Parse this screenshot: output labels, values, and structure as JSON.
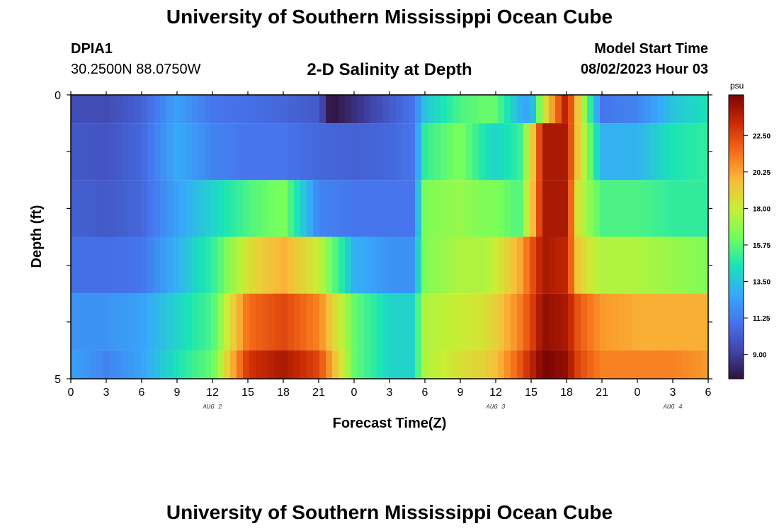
{
  "header": {
    "title": "University of Southern Mississippi Ocean Cube",
    "station": "DPIA1",
    "coords": "30.2500N  88.0750W",
    "chart_title": "2-D Salinity at Depth",
    "model_label": "Model Start Time",
    "model_time": "08/02/2023 Hour 03"
  },
  "footer": {
    "title": "University of Southern Mississippi Ocean Cube"
  },
  "chart_data": {
    "type": "heatmap",
    "title": "2-D Salinity at Depth",
    "xlabel": "Forecast Time(Z)",
    "ylabel": "Depth (ft)",
    "colorbar_unit": "psu",
    "colorbar_ticks": [
      "22.50",
      "20.25",
      "18.00",
      "15.75",
      "13.50",
      "11.25",
      "9.00"
    ],
    "colorbar_range": [
      7.5,
      25.0
    ],
    "y_ticks": [
      "0",
      "5"
    ],
    "x_tick_labels": [
      "0",
      "3",
      "6",
      "9",
      "12",
      "15",
      "18",
      "21",
      "0",
      "3",
      "6",
      "9",
      "12",
      "15",
      "18",
      "21",
      "0",
      "3",
      "6"
    ],
    "date_labels": [
      {
        "label": "AUG 2",
        "tick_index": 4
      },
      {
        "label": "AUG 3",
        "tick_index": 12
      },
      {
        "label": "AUG 4",
        "tick_index": 17
      }
    ],
    "layers": [
      {
        "depth_range": [
          0,
          0.5
        ],
        "times": [
          0,
          3,
          6,
          9,
          12,
          15,
          18,
          21,
          22,
          24,
          27,
          29,
          30,
          33,
          35,
          36,
          38,
          39,
          40,
          42,
          43,
          45,
          48,
          51,
          54
        ],
        "values": [
          9.6,
          9.5,
          10.3,
          12.5,
          11.0,
          10.8,
          10.5,
          10.0,
          7.5,
          8.5,
          10.0,
          11.0,
          13.5,
          15.5,
          16.0,
          16.0,
          13.0,
          12.5,
          18.0,
          24.0,
          19.0,
          11.0,
          11.5,
          13.5,
          14.5
        ]
      },
      {
        "depth_range": [
          0.5,
          1.5
        ],
        "times": [
          0,
          3,
          6,
          9,
          12,
          15,
          18,
          21,
          24,
          27,
          29,
          30,
          33,
          35,
          36,
          38,
          39,
          40,
          42,
          43,
          45,
          48,
          51,
          54
        ],
        "values": [
          10.0,
          9.8,
          10.5,
          12.8,
          11.5,
          11.0,
          11.0,
          10.5,
          10.3,
          10.5,
          11.0,
          15.0,
          16.5,
          14.5,
          14.0,
          15.0,
          18.5,
          24.0,
          24.0,
          19.0,
          13.0,
          13.0,
          14.5,
          15.0
        ]
      },
      {
        "depth_range": [
          1.5,
          2.5
        ],
        "times": [
          0,
          3,
          6,
          9,
          12,
          15,
          18,
          21,
          24,
          27,
          29,
          30,
          33,
          35,
          36,
          38,
          39,
          40,
          42,
          43,
          45,
          48,
          51,
          54
        ],
        "values": [
          10.3,
          10.0,
          10.5,
          12.5,
          14.0,
          15.5,
          16.5,
          11.5,
          11.0,
          11.0,
          11.0,
          16.5,
          17.0,
          16.5,
          16.5,
          15.5,
          19.0,
          24.0,
          24.0,
          18.0,
          15.5,
          15.5,
          15.0,
          15.0
        ]
      },
      {
        "depth_range": [
          2.5,
          3.5
        ],
        "times": [
          0,
          3,
          6,
          9,
          12,
          15,
          18,
          21,
          24,
          27,
          29,
          30,
          33,
          35,
          36,
          38,
          39,
          40,
          42,
          43,
          45,
          48,
          51,
          54
        ],
        "values": [
          10.8,
          10.8,
          11.0,
          13.0,
          15.0,
          18.5,
          20.0,
          18.0,
          13.0,
          12.0,
          12.0,
          16.5,
          17.5,
          17.5,
          18.0,
          20.0,
          22.0,
          24.0,
          23.5,
          19.0,
          17.5,
          17.5,
          17.0,
          16.5
        ]
      },
      {
        "depth_range": [
          3.5,
          4.5
        ],
        "times": [
          0,
          3,
          6,
          9,
          12,
          15,
          18,
          21,
          24,
          27,
          29,
          30,
          33,
          35,
          36,
          38,
          39,
          40,
          42,
          43,
          45,
          48,
          51,
          54
        ],
        "values": [
          12.0,
          12.0,
          12.5,
          14.0,
          15.5,
          21.5,
          22.5,
          21.0,
          16.0,
          14.0,
          14.0,
          17.5,
          18.0,
          18.5,
          19.0,
          21.0,
          22.5,
          24.5,
          24.0,
          22.0,
          20.5,
          20.0,
          20.0,
          20.0
        ]
      },
      {
        "depth_range": [
          4.5,
          5
        ],
        "times": [
          0,
          3,
          6,
          9,
          12,
          15,
          18,
          21,
          24,
          27,
          29,
          30,
          33,
          35,
          36,
          38,
          39,
          40,
          42,
          43,
          45,
          48,
          51,
          54
        ],
        "values": [
          12.5,
          11.5,
          12.5,
          14.5,
          16.0,
          23.0,
          24.0,
          22.5,
          16.0,
          14.0,
          14.0,
          17.5,
          18.5,
          19.0,
          19.5,
          22.0,
          23.5,
          25.0,
          24.5,
          22.5,
          21.0,
          21.0,
          21.0,
          20.5
        ]
      }
    ],
    "grid": false
  }
}
